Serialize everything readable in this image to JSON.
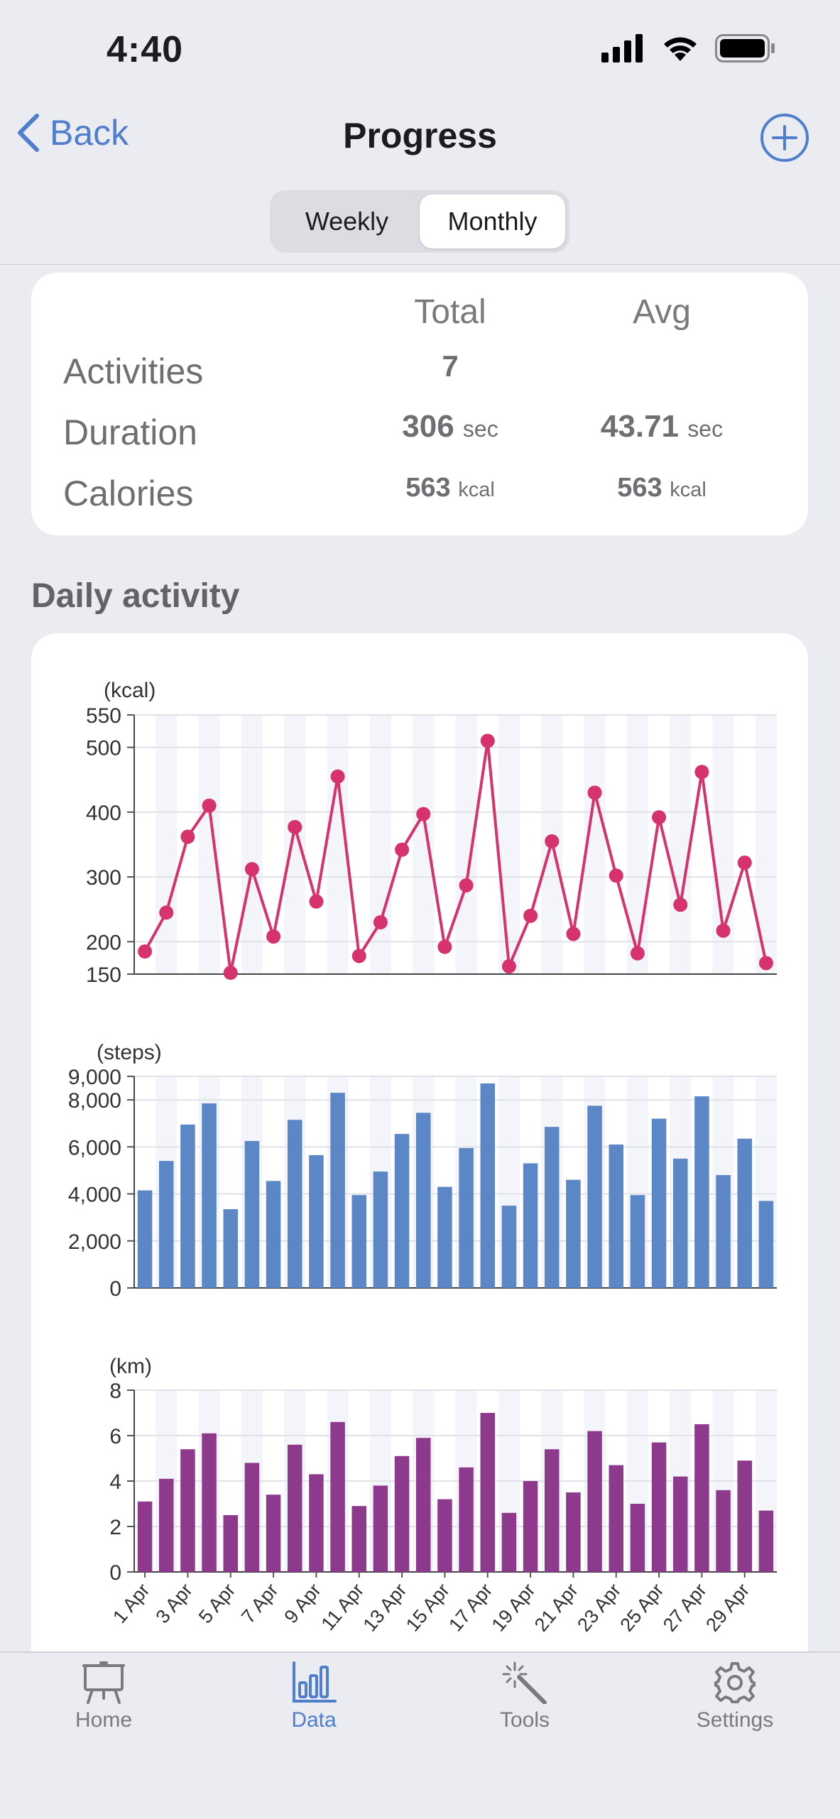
{
  "status": {
    "time": "4:40"
  },
  "nav": {
    "back_label": "Back",
    "title": "Progress"
  },
  "segment": {
    "options": [
      "Weekly",
      "Monthly"
    ],
    "selected": "Monthly"
  },
  "summary": {
    "headers": [
      "Total",
      "Avg"
    ],
    "rows": [
      {
        "label": "Activities",
        "total": "7",
        "total_unit": "",
        "avg": "",
        "avg_unit": ""
      },
      {
        "label": "Duration",
        "total": "306",
        "total_unit": "sec",
        "avg": "43.71",
        "avg_unit": "sec"
      },
      {
        "label": "Calories",
        "total": "563",
        "total_unit": "kcal",
        "avg": "563",
        "avg_unit": "kcal"
      }
    ]
  },
  "section": {
    "title": "Daily activity"
  },
  "chart_data": [
    {
      "type": "line",
      "ylabel": "(kcal)",
      "ylim": [
        150,
        550
      ],
      "yticks": [
        150,
        200,
        300,
        400,
        500,
        550
      ],
      "ytick_labels": [
        "150",
        "200",
        "300",
        "400",
        "500",
        "550"
      ],
      "x": [
        "1 Apr",
        "2 Apr",
        "3 Apr",
        "4 Apr",
        "5 Apr",
        "6 Apr",
        "7 Apr",
        "8 Apr",
        "9 Apr",
        "10 Apr",
        "11 Apr",
        "12 Apr",
        "13 Apr",
        "14 Apr",
        "15 Apr",
        "16 Apr",
        "17 Apr",
        "18 Apr",
        "19 Apr",
        "20 Apr",
        "21 Apr",
        "22 Apr",
        "23 Apr",
        "24 Apr",
        "25 Apr",
        "26 Apr",
        "27 Apr",
        "28 Apr",
        "29 Apr",
        "30 Apr"
      ],
      "values": [
        185,
        245,
        362,
        410,
        152,
        312,
        208,
        377,
        262,
        455,
        178,
        230,
        342,
        397,
        192,
        287,
        510,
        162,
        240,
        355,
        212,
        430,
        302,
        182,
        392,
        257,
        462,
        217,
        322,
        167
      ],
      "color": "#d6336c",
      "grid": true
    },
    {
      "type": "bar",
      "ylabel": "(steps)",
      "ylim": [
        0,
        9000
      ],
      "yticks": [
        0,
        2000,
        4000,
        6000,
        8000,
        9000
      ],
      "ytick_labels": [
        "0",
        "2,000",
        "4,000",
        "6,000",
        "8,000",
        "9,000"
      ],
      "x": [
        "1 Apr",
        "2 Apr",
        "3 Apr",
        "4 Apr",
        "5 Apr",
        "6 Apr",
        "7 Apr",
        "8 Apr",
        "9 Apr",
        "10 Apr",
        "11 Apr",
        "12 Apr",
        "13 Apr",
        "14 Apr",
        "15 Apr",
        "16 Apr",
        "17 Apr",
        "18 Apr",
        "19 Apr",
        "20 Apr",
        "21 Apr",
        "22 Apr",
        "23 Apr",
        "24 Apr",
        "25 Apr",
        "26 Apr",
        "27 Apr",
        "28 Apr",
        "29 Apr",
        "30 Apr"
      ],
      "values": [
        4150,
        5400,
        6950,
        7850,
        3350,
        6250,
        4550,
        7150,
        5650,
        8300,
        3950,
        4950,
        6550,
        7450,
        4300,
        5950,
        8700,
        3500,
        5300,
        6850,
        4600,
        7750,
        6100,
        3950,
        7200,
        5500,
        8150,
        4800,
        6350,
        3700
      ],
      "color": "#5b87c7",
      "grid": true
    },
    {
      "type": "bar",
      "ylabel": "(km)",
      "ylim": [
        0,
        8
      ],
      "yticks": [
        0,
        2,
        4,
        6,
        8
      ],
      "ytick_labels": [
        "0",
        "2",
        "4",
        "6",
        "8"
      ],
      "x": [
        "1 Apr",
        "2 Apr",
        "3 Apr",
        "4 Apr",
        "5 Apr",
        "6 Apr",
        "7 Apr",
        "8 Apr",
        "9 Apr",
        "10 Apr",
        "11 Apr",
        "12 Apr",
        "13 Apr",
        "14 Apr",
        "15 Apr",
        "16 Apr",
        "17 Apr",
        "18 Apr",
        "19 Apr",
        "20 Apr",
        "21 Apr",
        "22 Apr",
        "23 Apr",
        "24 Apr",
        "25 Apr",
        "26 Apr",
        "27 Apr",
        "28 Apr",
        "29 Apr",
        "30 Apr"
      ],
      "xtick_labels": [
        "1 Apr",
        "3 Apr",
        "5 Apr",
        "7 Apr",
        "9 Apr",
        "11 Apr",
        "13 Apr",
        "15 Apr",
        "17 Apr",
        "19 Apr",
        "21 Apr",
        "23 Apr",
        "25 Apr",
        "27 Apr",
        "29 Apr"
      ],
      "values": [
        3.1,
        4.1,
        5.4,
        6.1,
        2.5,
        4.8,
        3.4,
        5.6,
        4.3,
        6.6,
        2.9,
        3.8,
        5.1,
        5.9,
        3.2,
        4.6,
        7.0,
        2.6,
        4.0,
        5.4,
        3.5,
        6.2,
        4.7,
        3.0,
        5.7,
        4.2,
        6.5,
        3.6,
        4.9,
        2.7
      ],
      "color": "#8e3a8c",
      "grid": true
    }
  ],
  "tabbar": {
    "items": [
      {
        "label": "Home",
        "icon": "easel-icon"
      },
      {
        "label": "Data",
        "icon": "bar-chart-icon"
      },
      {
        "label": "Tools",
        "icon": "magic-wand-icon"
      },
      {
        "label": "Settings",
        "icon": "gear-icon"
      }
    ],
    "active": "Data",
    "accent": "#4f7fcc"
  }
}
